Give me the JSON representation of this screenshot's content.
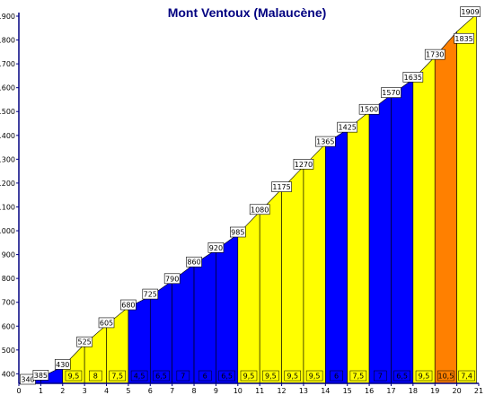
{
  "title": "Mont Ventoux (Malaucène)",
  "colors": {
    "yellow": "#ffff00",
    "blue": "#0000ff",
    "orange": "#ff8000",
    "axis": "#000080",
    "label_bg": "#ffffff"
  },
  "chart_data": {
    "type": "area",
    "title": "Mont Ventoux (Malaucène)",
    "xlabel": "",
    "ylabel": "",
    "xlim": [
      0,
      21
    ],
    "ylim": [
      360,
      1900
    ],
    "x_ticks": [
      0,
      1,
      2,
      3,
      4,
      5,
      6,
      7,
      8,
      9,
      10,
      11,
      12,
      13,
      14,
      15,
      16,
      17,
      18,
      19,
      20,
      21
    ],
    "y_ticks": [
      400,
      500,
      600,
      700,
      800,
      900,
      1000,
      1100,
      1200,
      1300,
      1400,
      1500,
      1600,
      1700,
      1800,
      1900
    ],
    "points": [
      {
        "x": 0,
        "alt": 340,
        "label": "340"
      },
      {
        "x": 1,
        "alt": 385,
        "label": "385"
      },
      {
        "x": 2,
        "alt": 430,
        "label": "430"
      },
      {
        "x": 3,
        "alt": 525,
        "label": "525"
      },
      {
        "x": 4,
        "alt": 605,
        "label": "605"
      },
      {
        "x": 5,
        "alt": 680,
        "label": "680"
      },
      {
        "x": 6,
        "alt": 725,
        "label": "725"
      },
      {
        "x": 7,
        "alt": 790,
        "label": "790"
      },
      {
        "x": 8,
        "alt": 860,
        "label": "860"
      },
      {
        "x": 9,
        "alt": 920,
        "label": "920"
      },
      {
        "x": 10,
        "alt": 985,
        "label": "985"
      },
      {
        "x": 11,
        "alt": 1080,
        "label": "1080"
      },
      {
        "x": 12,
        "alt": 1175,
        "label": "1175"
      },
      {
        "x": 13,
        "alt": 1270,
        "label": "1270"
      },
      {
        "x": 14,
        "alt": 1365,
        "label": "1365"
      },
      {
        "x": 15,
        "alt": 1425,
        "label": "1425"
      },
      {
        "x": 16,
        "alt": 1500,
        "label": "1500"
      },
      {
        "x": 17,
        "alt": 1570,
        "label": "1570"
      },
      {
        "x": 18,
        "alt": 1635,
        "label": "1635"
      },
      {
        "x": 19,
        "alt": 1730,
        "label": "1730"
      },
      {
        "x": 20,
        "alt": 1835,
        "label": "1835"
      },
      {
        "x": 20.9,
        "alt": 1909,
        "label": "1909"
      }
    ],
    "segments": [
      {
        "from": 0,
        "to": 1,
        "gradient": "",
        "color": "blue"
      },
      {
        "from": 1,
        "to": 2,
        "gradient": "",
        "color": "blue"
      },
      {
        "from": 2,
        "to": 3,
        "gradient": "9,5",
        "color": "yellow"
      },
      {
        "from": 3,
        "to": 4,
        "gradient": "8",
        "color": "yellow"
      },
      {
        "from": 4,
        "to": 5,
        "gradient": "7,5",
        "color": "yellow"
      },
      {
        "from": 5,
        "to": 6,
        "gradient": "4,5",
        "color": "blue"
      },
      {
        "from": 6,
        "to": 7,
        "gradient": "6,5",
        "color": "blue"
      },
      {
        "from": 7,
        "to": 8,
        "gradient": "7",
        "color": "blue"
      },
      {
        "from": 8,
        "to": 9,
        "gradient": "6",
        "color": "blue"
      },
      {
        "from": 9,
        "to": 10,
        "gradient": "6,5",
        "color": "blue"
      },
      {
        "from": 10,
        "to": 11,
        "gradient": "9,5",
        "color": "yellow"
      },
      {
        "from": 11,
        "to": 12,
        "gradient": "9,5",
        "color": "yellow"
      },
      {
        "from": 12,
        "to": 13,
        "gradient": "9,5",
        "color": "yellow"
      },
      {
        "from": 13,
        "to": 14,
        "gradient": "9,5",
        "color": "yellow"
      },
      {
        "from": 14,
        "to": 15,
        "gradient": "6",
        "color": "blue"
      },
      {
        "from": 15,
        "to": 16,
        "gradient": "7,5",
        "color": "yellow"
      },
      {
        "from": 16,
        "to": 17,
        "gradient": "7",
        "color": "blue"
      },
      {
        "from": 17,
        "to": 18,
        "gradient": "6,5",
        "color": "blue"
      },
      {
        "from": 18,
        "to": 19,
        "gradient": "9,5",
        "color": "yellow"
      },
      {
        "from": 19,
        "to": 20,
        "gradient": "10,5",
        "color": "orange"
      },
      {
        "from": 20,
        "to": 20.9,
        "gradient": "7,4",
        "color": "yellow"
      }
    ]
  }
}
